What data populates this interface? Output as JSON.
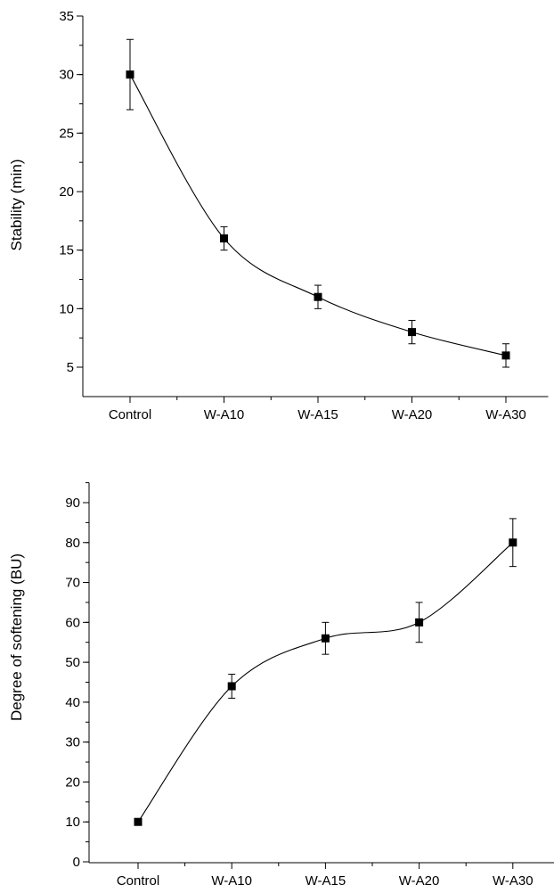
{
  "chart_data": [
    {
      "type": "line",
      "categories": [
        "Control",
        "W-A10",
        "W-A15",
        "W-A20",
        "W-A30"
      ],
      "ylabel": "Stability (min)",
      "xlabel": "",
      "ylim": [
        3,
        35
      ],
      "yticks": [
        5,
        10,
        15,
        20,
        25,
        30,
        35
      ],
      "y_minor_step": 2.5,
      "values": [
        30,
        16,
        11,
        8,
        6
      ],
      "error": [
        3,
        1,
        1,
        1,
        1
      ],
      "marker": "square",
      "line": "smooth",
      "grid": false,
      "colors": {
        "line": "#000000",
        "marker": "#000000"
      }
    },
    {
      "type": "line",
      "categories": [
        "Control",
        "W-A10",
        "W-A15",
        "W-A20",
        "W-A30"
      ],
      "ylabel": "Degree of softening (BU)",
      "xlabel": "",
      "ylim": [
        0,
        95
      ],
      "yticks": [
        0,
        10,
        20,
        30,
        40,
        50,
        60,
        70,
        80,
        90
      ],
      "y_minor_step": 5,
      "values": [
        10,
        44,
        56,
        60,
        80
      ],
      "error": [
        0,
        3,
        4,
        5,
        6
      ],
      "marker": "square",
      "line": "smooth",
      "grid": false,
      "colors": {
        "line": "#000000",
        "marker": "#000000"
      }
    }
  ]
}
